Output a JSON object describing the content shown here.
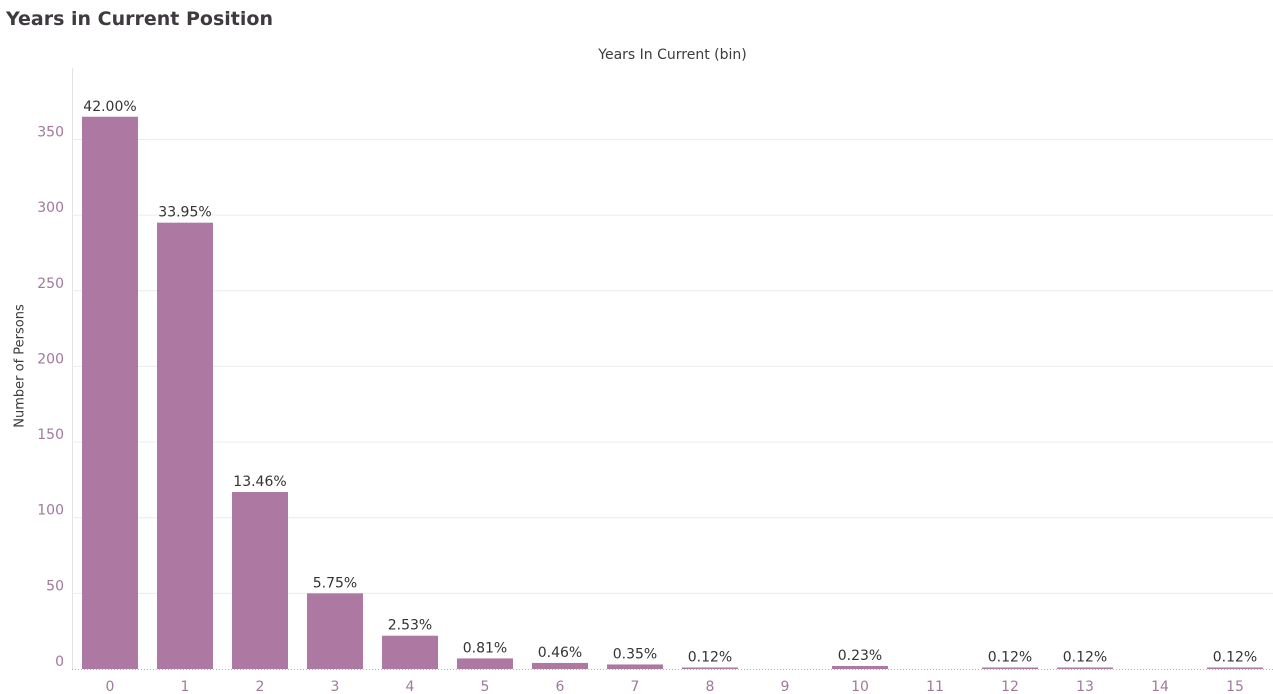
{
  "colors": {
    "bar": "#ad79a2",
    "grid": "#ececec",
    "tick_text": "#a0799d",
    "label_text": "#333333",
    "title_text": "#3f3a3f",
    "axis_line": "#e2e2e2"
  },
  "chart_data": {
    "type": "bar",
    "title": "Years in Current Position",
    "header": "Years In Current (bin)",
    "ylabel": "Number of Persons",
    "categories": [
      "0",
      "1",
      "2",
      "3",
      "4",
      "5",
      "6",
      "7",
      "8",
      "9",
      "10",
      "11",
      "12",
      "13",
      "14",
      "15"
    ],
    "values": [
      365,
      295,
      117,
      50,
      22,
      7,
      4,
      3,
      1,
      0,
      2,
      0,
      1,
      1,
      0,
      1
    ],
    "labels": [
      "42.00%",
      "33.95%",
      "13.46%",
      "5.75%",
      "2.53%",
      "0.81%",
      "0.46%",
      "0.35%",
      "0.12%",
      "",
      "0.23%",
      "",
      "0.12%",
      "0.12%",
      "",
      "0.12%"
    ],
    "ylim": [
      0,
      390
    ],
    "yticks": [
      0,
      50,
      100,
      150,
      200,
      250,
      300,
      350
    ],
    "grid": true,
    "legend": "none"
  }
}
